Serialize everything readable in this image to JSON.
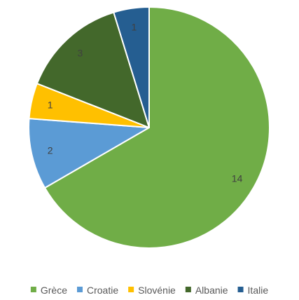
{
  "chart_data": {
    "type": "pie",
    "title": "",
    "categories": [
      "Grèce",
      "Croatie",
      "Slovénie",
      "Albanie",
      "Italie"
    ],
    "values": [
      14,
      2,
      1,
      3,
      1
    ],
    "colors": [
      "#70ad47",
      "#5b9bd5",
      "#ffc000",
      "#43682b",
      "#255e91"
    ],
    "data_labels": [
      "14",
      "2",
      "1",
      "3",
      "1"
    ],
    "legend_position": "bottom",
    "start_angle": "12 o'clock",
    "direction": "clockwise"
  }
}
